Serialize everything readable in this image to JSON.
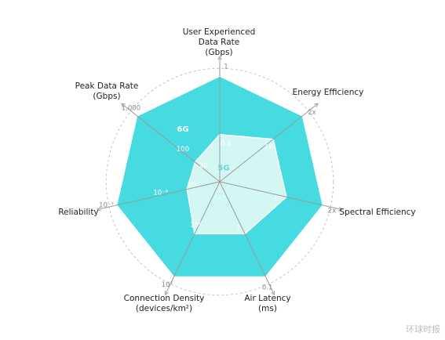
{
  "chart_data": {
    "type": "radar",
    "axes": [
      {
        "label": [
          "User Experienced",
          "Data Rate",
          "(Gbps)"
        ],
        "ticks": [
          {
            "text": "0.1",
            "r": 0.45
          },
          {
            "text": "1",
            "r": 1.0
          }
        ]
      },
      {
        "label": [
          "Energy Efficiency"
        ],
        "ticks": [
          {
            "text": "1x",
            "r": 0.65
          },
          {
            "text": "2x",
            "r": 1.0
          }
        ]
      },
      {
        "label": [
          "Spectral Efficiency"
        ],
        "ticks": [
          {
            "text": "1x",
            "r": 0.65
          },
          {
            "text": "2x",
            "r": 1.0
          }
        ]
      },
      {
        "label": [
          "Air Latency",
          "(ms)"
        ],
        "ticks": [
          {
            "text": "1",
            "r": 0.55
          },
          {
            "text": "0.1",
            "r": 1.0
          }
        ]
      },
      {
        "label": [
          "Connection Density",
          "(devices/km²)"
        ],
        "ticks": [
          {
            "text": "10⁶",
            "r": 0.55
          },
          {
            "text": "10⁷",
            "r": 1.0
          }
        ]
      },
      {
        "label": [
          "Reliability"
        ],
        "ticks": [
          {
            "text": "10⁻⁵",
            "r": 0.32
          },
          {
            "text": "10⁻⁶",
            "r": 0.65
          },
          {
            "text": "10⁻⁷",
            "r": 1.0
          }
        ]
      },
      {
        "label": [
          "Peak Data Rate",
          "(Gbps)"
        ],
        "ticks": [
          {
            "text": "20",
            "r": 0.3
          },
          {
            "text": "100",
            "r": 0.55
          },
          {
            "text": "1,000",
            "r": 1.0
          }
        ]
      }
    ],
    "series": [
      {
        "name": "6G",
        "values": [
          1.0,
          1.0,
          1.0,
          1.0,
          1.0,
          1.0,
          1.0
        ],
        "color": "#45dbe0"
      },
      {
        "name": "5G",
        "values": [
          0.45,
          0.65,
          0.65,
          0.55,
          0.55,
          0.32,
          0.3
        ],
        "color": "#d3f7f3"
      }
    ],
    "grid": "dashed circles"
  },
  "watermark": "环球时报"
}
